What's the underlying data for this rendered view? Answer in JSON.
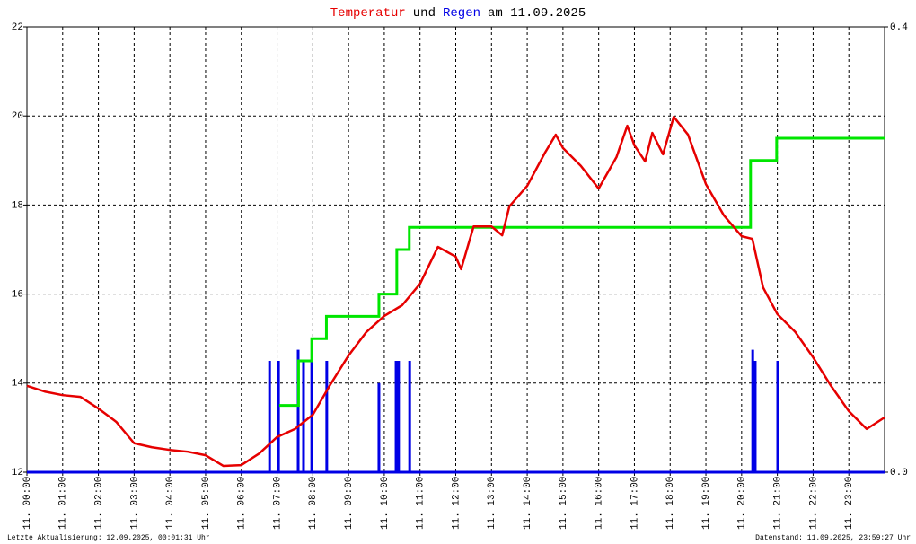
{
  "chart_data": {
    "type": "line",
    "title_parts": [
      {
        "text": "Temperatur",
        "color": "#e60000"
      },
      {
        "text": "und"
      },
      {
        "text": "Regen",
        "color": "#0000e6"
      },
      {
        "text": "am 11.09.2025"
      }
    ],
    "footer_left": "Letzte Aktualisierung: 12.09.2025, 00:01:31 Uhr",
    "footer_right": "Datenstand: 11.09.2025, 23:59:27 Uhr",
    "xlim": [
      0,
      24
    ],
    "xticks": [
      {
        "value": 0,
        "label": "11. 00:00"
      },
      {
        "value": 1,
        "label": "11. 01:00"
      },
      {
        "value": 2,
        "label": "11. 02:00"
      },
      {
        "value": 3,
        "label": "11. 03:00"
      },
      {
        "value": 4,
        "label": "11. 04:00"
      },
      {
        "value": 5,
        "label": "11. 05:00"
      },
      {
        "value": 6,
        "label": "11. 06:00"
      },
      {
        "value": 7,
        "label": "11. 07:00"
      },
      {
        "value": 8,
        "label": "11. 08:00"
      },
      {
        "value": 9,
        "label": "11. 09:00"
      },
      {
        "value": 10,
        "label": "11. 10:00"
      },
      {
        "value": 11,
        "label": "11. 11:00"
      },
      {
        "value": 12,
        "label": "11. 12:00"
      },
      {
        "value": 13,
        "label": "11. 13:00"
      },
      {
        "value": 14,
        "label": "11. 14:00"
      },
      {
        "value": 15,
        "label": "11. 15:00"
      },
      {
        "value": 16,
        "label": "11. 16:00"
      },
      {
        "value": 17,
        "label": "11. 17:00"
      },
      {
        "value": 18,
        "label": "11. 18:00"
      },
      {
        "value": 19,
        "label": "11. 19:00"
      },
      {
        "value": 20,
        "label": "11. 20:00"
      },
      {
        "value": 21,
        "label": "11. 21:00"
      },
      {
        "value": 22,
        "label": "11. 22:00"
      },
      {
        "value": 23,
        "label": "11. 23:00"
      }
    ],
    "ylim": [
      12,
      22
    ],
    "yticks": [
      12,
      14,
      16,
      18,
      20,
      22
    ],
    "y2lim": [
      0,
      0.4
    ],
    "y2ticks": [
      {
        "value": 0,
        "label": "0.0"
      },
      0.4
    ],
    "grid": true,
    "series": [
      {
        "type": "bar",
        "axis": "y2",
        "color": "#0000e6",
        "x": [
          6.79,
          7.04,
          7.59,
          7.74,
          7.97,
          8.39,
          9.85,
          10.33,
          10.4,
          10.71,
          20.31,
          20.38,
          21.01
        ],
        "values": [
          0.1,
          0.1,
          0.11,
          0.1,
          0.1,
          0.1,
          0.08,
          0.1,
          0.1,
          0.1,
          0.11,
          0.1,
          0.1
        ]
      },
      {
        "type": "step",
        "axis": "y2",
        "color": "#00e600",
        "x": [
          7.06,
          7.6,
          7.97,
          8.38,
          9.85,
          10.35,
          10.7,
          20.25,
          20.98,
          24
        ],
        "values": [
          0.06,
          0.1,
          0.12,
          0.14,
          0.16,
          0.2,
          0.22,
          0.28,
          0.3,
          0.3
        ]
      },
      {
        "type": "line",
        "color": "#e60000",
        "x": [
          0,
          0.5,
          1,
          1.5,
          2,
          2.5,
          3,
          3.5,
          4,
          4.5,
          5,
          5.5,
          6,
          6.5,
          7,
          7.5,
          8,
          8.5,
          9,
          9.5,
          10,
          10.5,
          11,
          11.5,
          12,
          12.15,
          12.5,
          13,
          13.3,
          13.5,
          14,
          14.5,
          14.8,
          15,
          15.5,
          16,
          16.5,
          16.8,
          17,
          17.3,
          17.5,
          17.8,
          18.1,
          18.5,
          19,
          19.5,
          20,
          20.3,
          20.6,
          21,
          21.5,
          22,
          22.5,
          23,
          23.5,
          24
        ],
        "values": [
          13.94,
          13.81,
          13.73,
          13.69,
          13.43,
          13.13,
          12.65,
          12.56,
          12.5,
          12.46,
          12.38,
          12.14,
          12.16,
          12.42,
          12.79,
          12.97,
          13.29,
          13.98,
          14.62,
          15.15,
          15.51,
          15.75,
          16.23,
          17.06,
          16.84,
          16.56,
          17.52,
          17.52,
          17.32,
          17.97,
          18.43,
          19.18,
          19.58,
          19.28,
          18.88,
          18.37,
          19.08,
          19.78,
          19.34,
          18.98,
          19.62,
          19.14,
          19.98,
          19.58,
          18.47,
          17.77,
          17.3,
          17.24,
          16.15,
          15.55,
          15.15,
          14.58,
          13.94,
          13.37,
          12.97,
          13.23
        ]
      }
    ]
  }
}
